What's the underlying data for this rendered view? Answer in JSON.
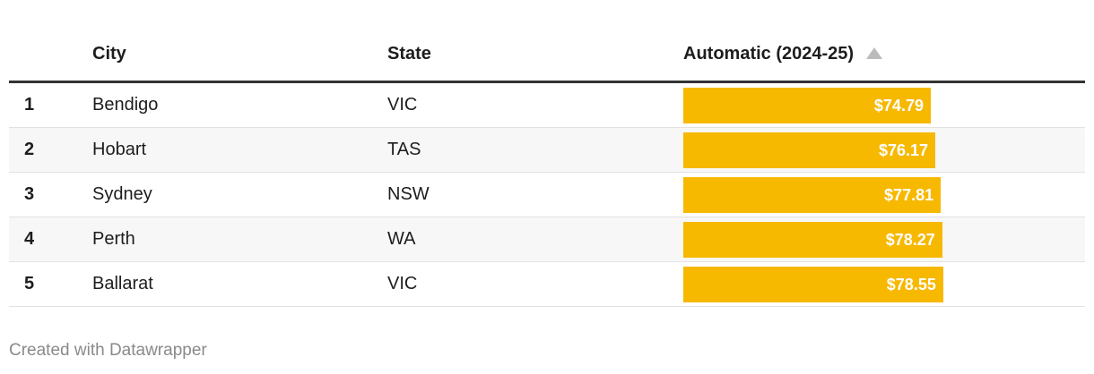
{
  "table": {
    "columns": [
      "City",
      "State",
      "Automatic (2024-25)"
    ],
    "rows": [
      {
        "rank": "1",
        "city": "Bendigo",
        "state": "VIC",
        "value": 74.79,
        "value_label": "$74.79"
      },
      {
        "rank": "2",
        "city": "Hobart",
        "state": "TAS",
        "value": 76.17,
        "value_label": "$76.17"
      },
      {
        "rank": "3",
        "city": "Sydney",
        "state": "NSW",
        "value": 77.81,
        "value_label": "$77.81"
      },
      {
        "rank": "4",
        "city": "Perth",
        "state": "WA",
        "value": 78.27,
        "value_label": "$78.27"
      },
      {
        "rank": "5",
        "city": "Ballarat",
        "state": "VIC",
        "value": 78.55,
        "value_label": "$78.55"
      }
    ]
  },
  "footer": "Created with Datawrapper"
}
